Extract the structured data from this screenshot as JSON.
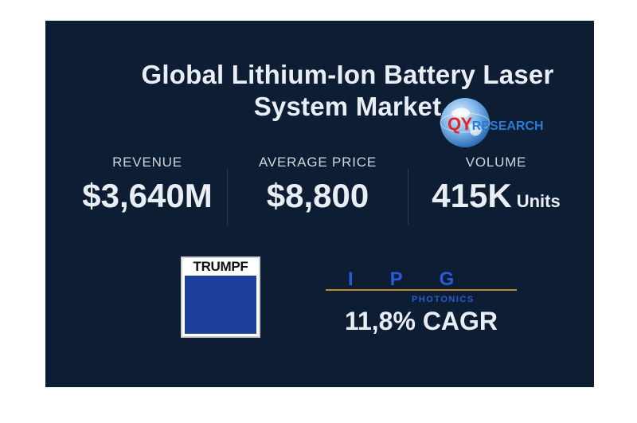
{
  "title": {
    "line1": "Global Lithium-Ion Battery Laser",
    "line2": "System Market"
  },
  "brand": {
    "qyr_prefix": "QY",
    "qyr_suffix": "RESEARCH",
    "qyr_red": "#e02424",
    "qyr_blue": "#2b7bd6"
  },
  "stats": [
    {
      "label": "REVENUE",
      "value": "$3,640M",
      "unit": ""
    },
    {
      "label": "AVERAGE PRICE",
      "value": "$8,800",
      "unit": ""
    },
    {
      "label": "VOLUME",
      "value": "415K",
      "unit": "Units"
    }
  ],
  "companies": {
    "trumpf": "TRUMPF",
    "ipg": "IPG",
    "ipg_sub": "PHOTONICS"
  },
  "cagr": "11,8% CAGR",
  "colors": {
    "background": "#0d1d33",
    "text": "#e9eef4",
    "trumpf_blue": "#1e3f9a",
    "ipg_blue": "#2a5bd0",
    "ipg_accent": "#c9892a"
  }
}
